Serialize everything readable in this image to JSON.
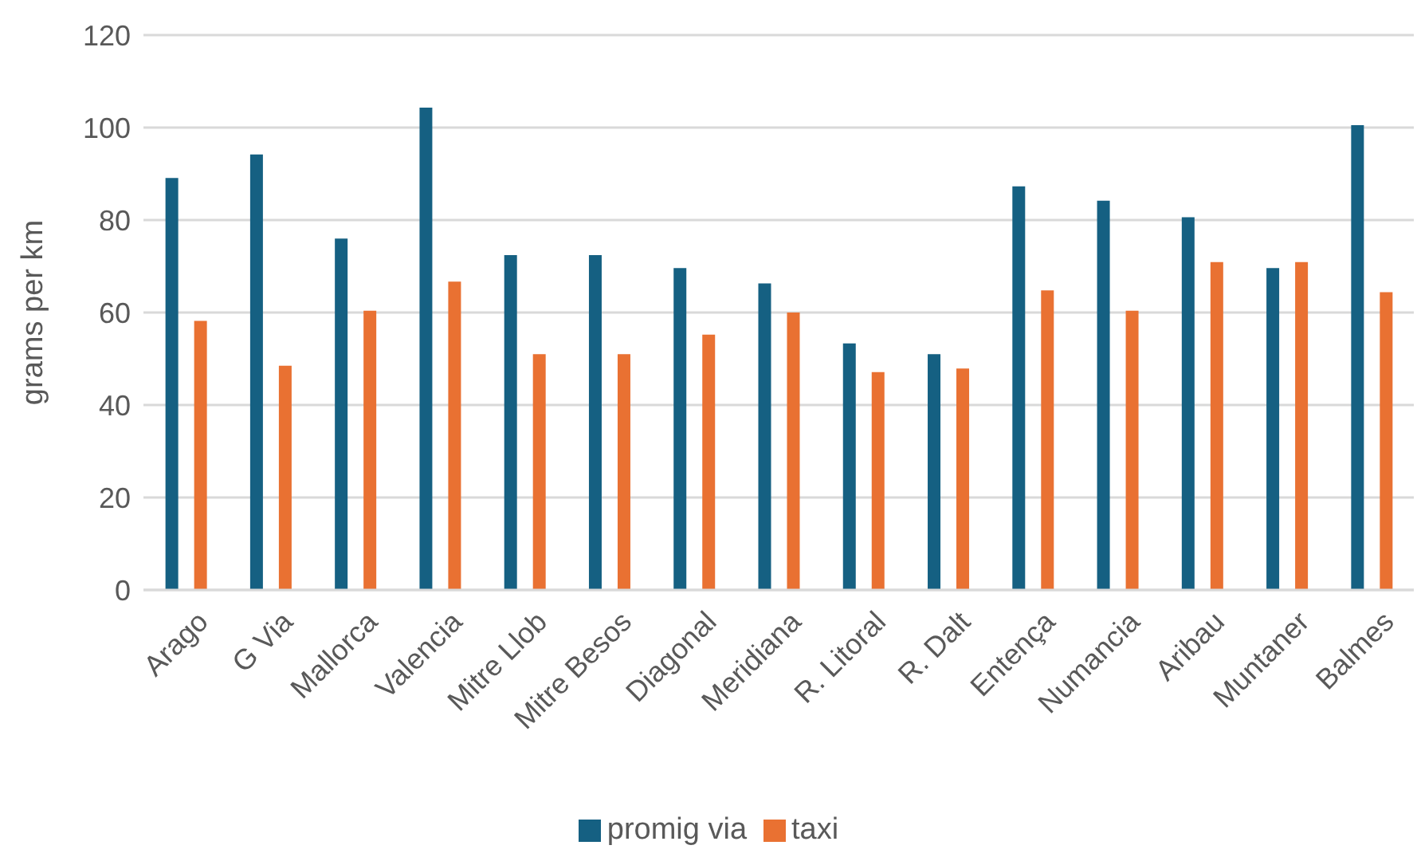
{
  "chart_data": {
    "type": "bar",
    "ylabel": "grams per km",
    "categories": [
      "Arago",
      "G Via",
      "Mallorca",
      "Valencia",
      "Mitre Llob",
      "Mitre Besos",
      "Diagonal",
      "Meridiana",
      "R. Litoral",
      "R. Dalt",
      "Entença",
      "Numancia",
      "Aribau",
      "Muntaner",
      "Balmes"
    ],
    "series": [
      {
        "name": "promig via",
        "color": "#156082",
        "values": [
          89.1,
          94.2,
          76,
          104.3,
          72.4,
          72.4,
          69.6,
          66.3,
          53.3,
          51.0,
          87.3,
          84.2,
          80.6,
          69.6,
          100.5
        ]
      },
      {
        "name": "taxi",
        "color": "#e97132",
        "values": [
          58.2,
          48.5,
          60.4,
          66.7,
          51.0,
          51.0,
          55.2,
          60.0,
          47.1,
          47.9,
          64.8,
          60.4,
          70.9,
          70.9,
          64.4
        ]
      }
    ],
    "ylim": [
      0,
      120
    ],
    "yticks": [
      0,
      20,
      40,
      60,
      80,
      100,
      120
    ],
    "grid": "y",
    "legend": "bottom"
  }
}
